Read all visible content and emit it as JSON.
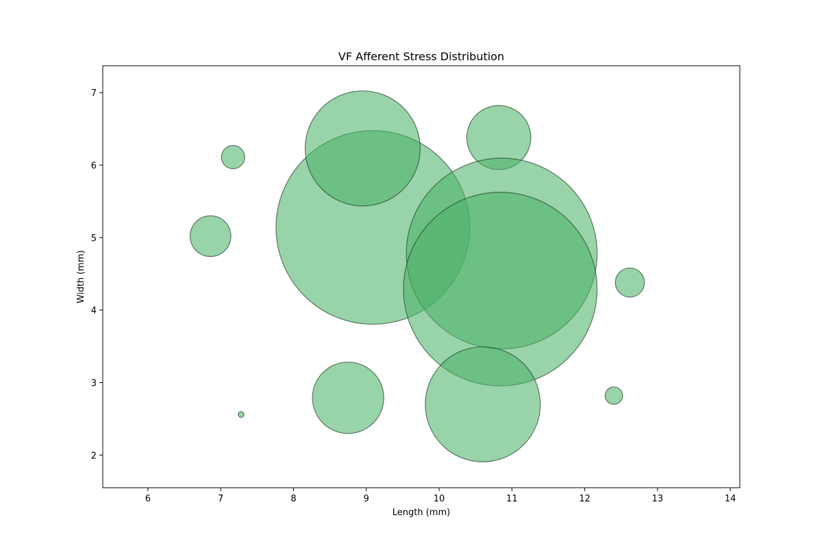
{
  "chart_data": {
    "type": "scatter",
    "subtype": "bubble",
    "title": "VF Afferent Stress Distribution",
    "xlabel": "Length (mm)",
    "ylabel": "Width (mm)",
    "xlim": [
      5.38,
      14.13
    ],
    "ylim": [
      1.55,
      7.37
    ],
    "xticks": [
      6,
      7,
      8,
      9,
      10,
      11,
      12,
      13,
      14
    ],
    "yticks": [
      2,
      3,
      4,
      5,
      6,
      7
    ],
    "grid": false,
    "legend": "none",
    "colors": {
      "fill": "#4cb168",
      "fill_opacity": 0.57,
      "edge": "#1a3a22",
      "edge_opacity": 0.65,
      "axes": "#000000",
      "background": "#ffffff"
    },
    "points": [
      {
        "x": 7.17,
        "y": 6.11,
        "r": 0.16
      },
      {
        "x": 6.86,
        "y": 5.02,
        "r": 0.28
      },
      {
        "x": 7.28,
        "y": 2.56,
        "r": 0.04
      },
      {
        "x": 8.75,
        "y": 2.79,
        "r": 0.49
      },
      {
        "x": 9.09,
        "y": 5.14,
        "r": 1.33
      },
      {
        "x": 8.95,
        "y": 6.23,
        "r": 0.79
      },
      {
        "x": 10.82,
        "y": 6.38,
        "r": 0.44
      },
      {
        "x": 10.86,
        "y": 4.78,
        "r": 1.31
      },
      {
        "x": 10.84,
        "y": 4.29,
        "r": 1.33
      },
      {
        "x": 10.6,
        "y": 2.7,
        "r": 0.79
      },
      {
        "x": 12.62,
        "y": 4.38,
        "r": 0.2
      },
      {
        "x": 12.4,
        "y": 2.82,
        "r": 0.12
      }
    ]
  }
}
